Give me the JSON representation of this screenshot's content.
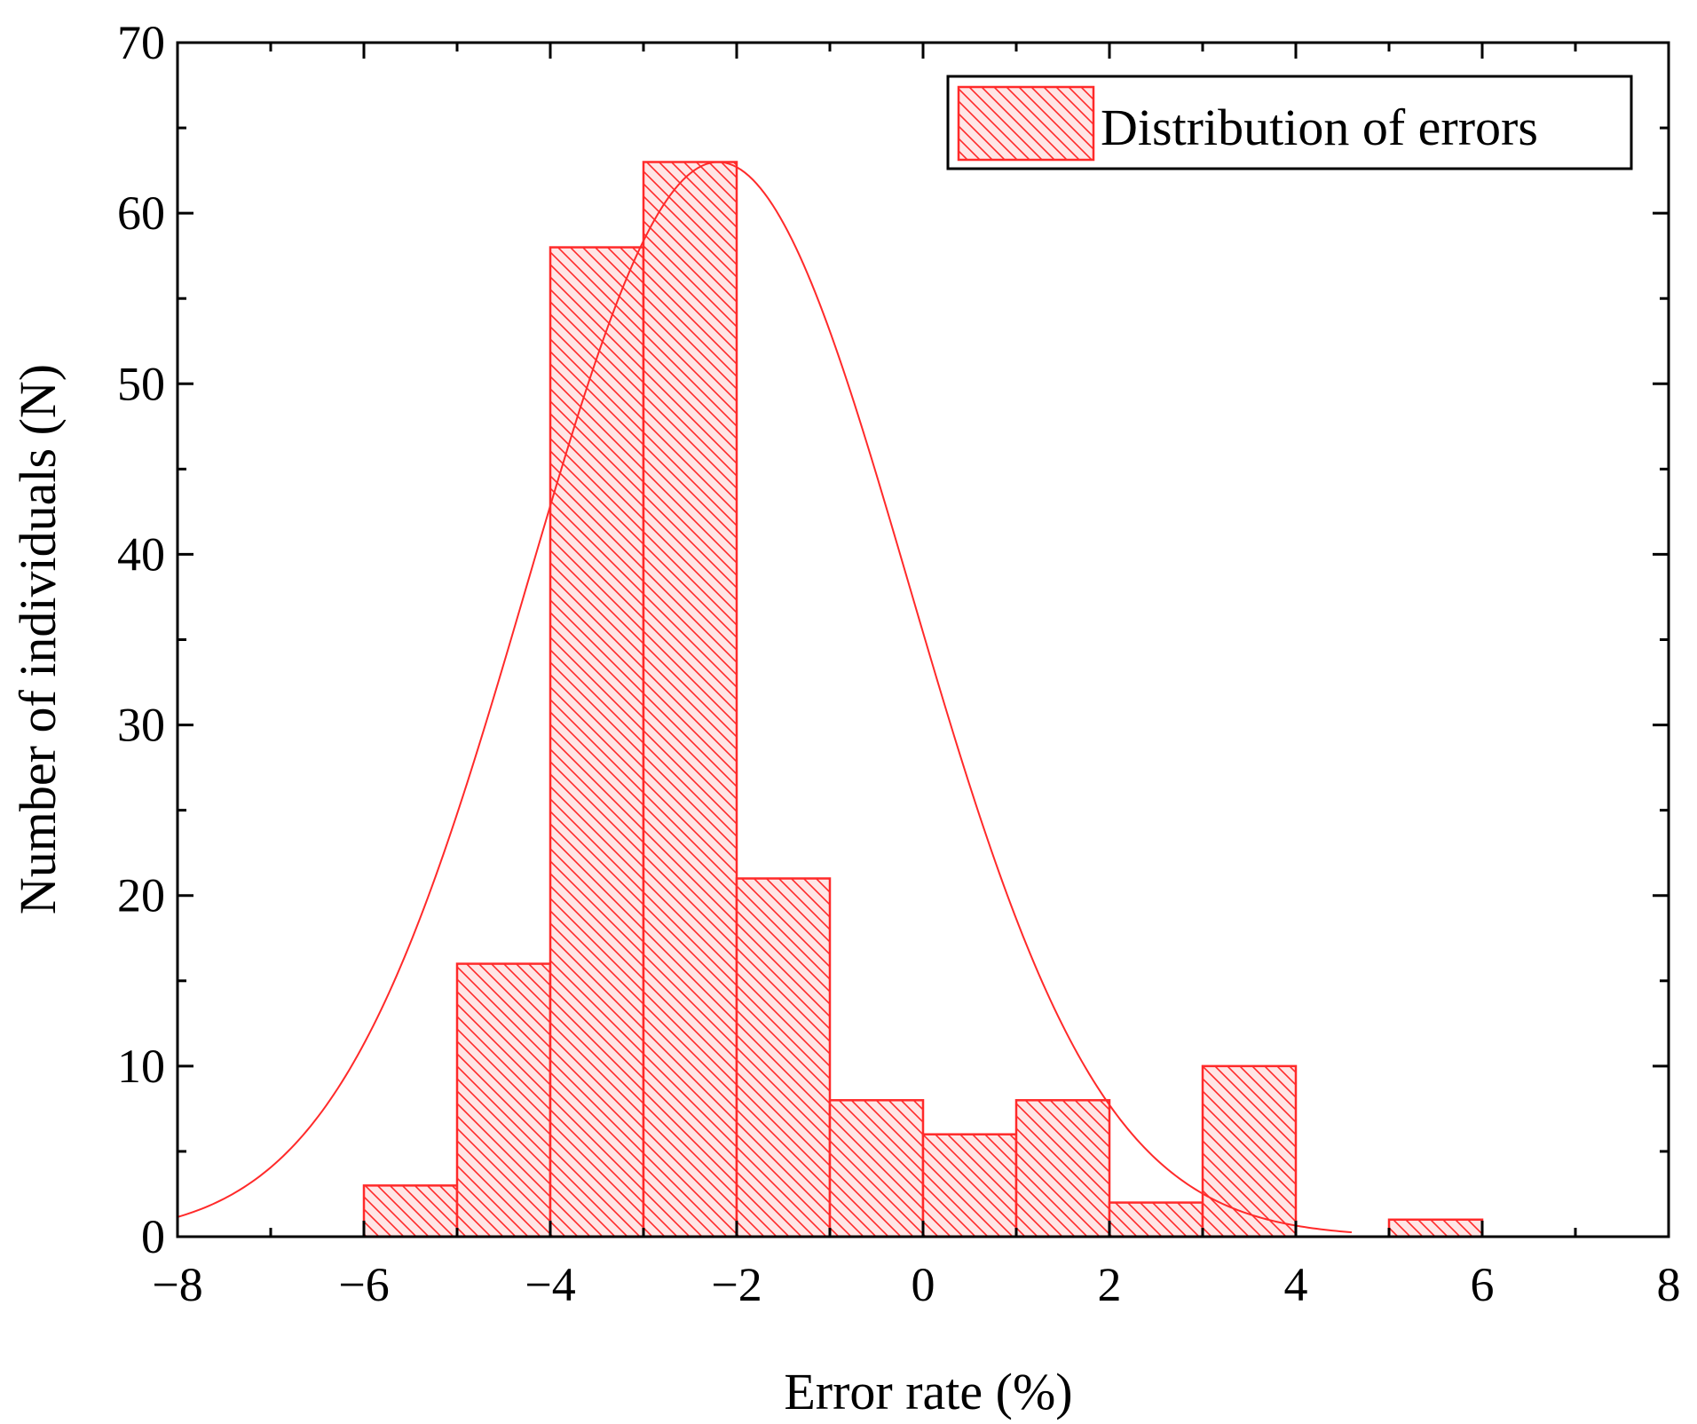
{
  "chart_data": {
    "type": "bar",
    "subtype": "histogram",
    "xlabel": "Error rate (%)",
    "ylabel": "Number of individuals (N)",
    "xlim": [
      -8,
      8
    ],
    "ylim": [
      0,
      70
    ],
    "x_ticks": [
      "−8",
      "−6",
      "−4",
      "−2",
      "0",
      "2",
      "4",
      "6",
      "8"
    ],
    "x_tick_values": [
      -8,
      -6,
      -4,
      -2,
      0,
      2,
      4,
      6,
      8
    ],
    "y_ticks": [
      "0",
      "10",
      "20",
      "30",
      "40",
      "50",
      "60",
      "70"
    ],
    "y_tick_values": [
      0,
      10,
      20,
      30,
      40,
      50,
      60,
      70
    ],
    "grid": false,
    "legend": {
      "position": "top-right",
      "entries": [
        "Distribution of errors"
      ]
    },
    "series": [
      {
        "name": "Distribution of errors",
        "kind": "histogram",
        "bin_edges": [
          -6,
          -5,
          -4,
          -3,
          -2,
          -1,
          0,
          1,
          2,
          3,
          4,
          5,
          6
        ],
        "values": [
          3,
          16,
          58,
          63,
          21,
          8,
          6,
          8,
          2,
          10,
          0,
          1
        ],
        "color": "#ff2a2a",
        "fill": "hatched"
      },
      {
        "kind": "normal-fit-curve",
        "mean": -2.2,
        "sd": 2.05,
        "peak": 63,
        "x_range": [
          -8,
          4.6
        ],
        "color": "#ff2a2a"
      }
    ]
  },
  "colors": {
    "series": "#ff2a2a",
    "axis": "#000000",
    "background": "#ffffff"
  }
}
